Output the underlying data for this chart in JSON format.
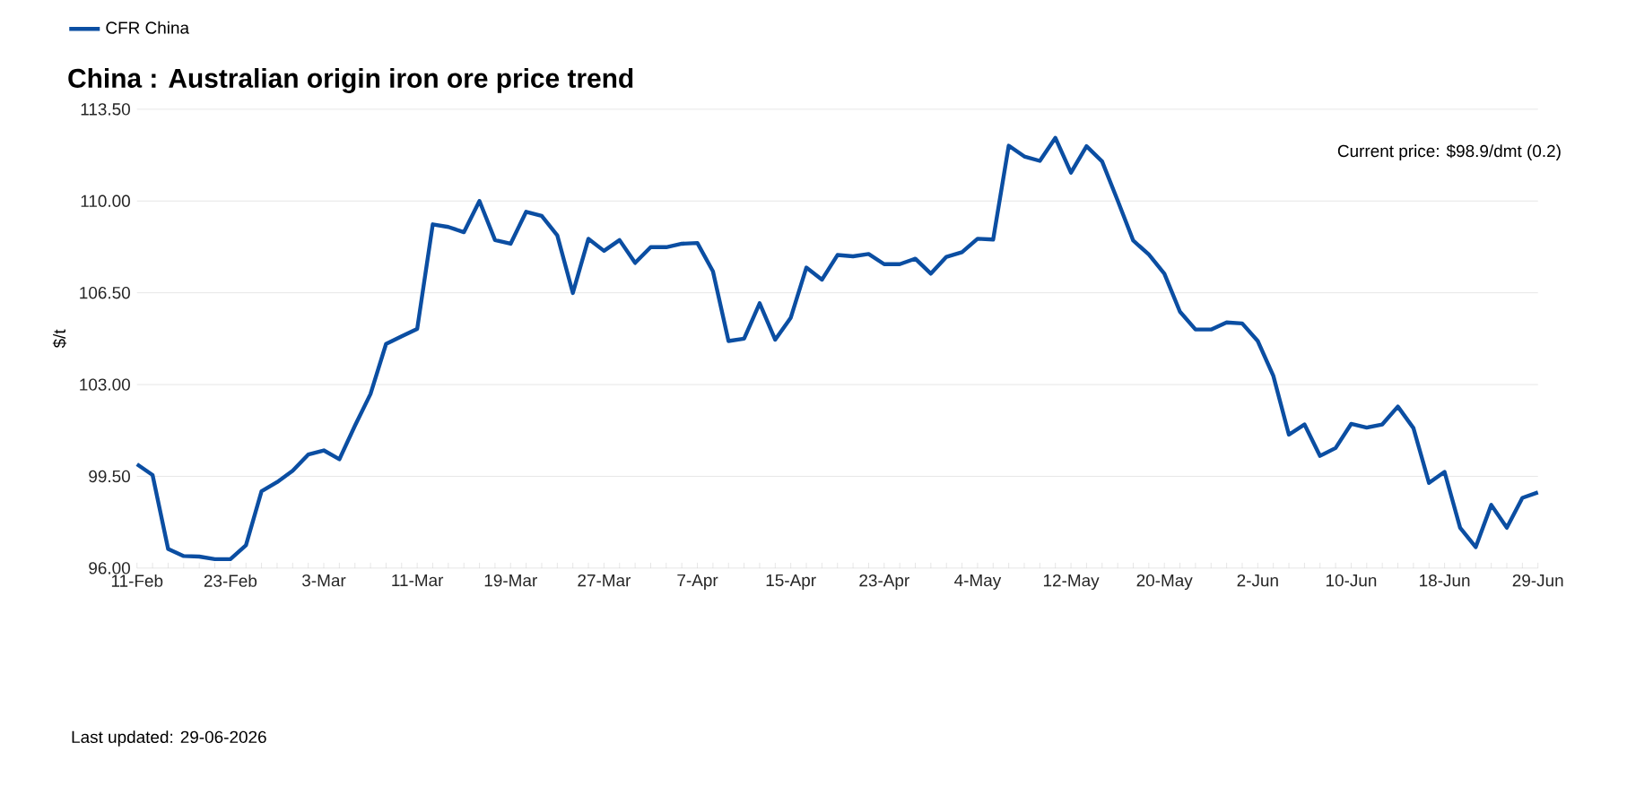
{
  "chart_data": {
    "type": "line",
    "title": "China : Australian origin iron ore price trend",
    "ylabel": "$/t",
    "categories": [
      "11-Feb",
      null,
      null,
      null,
      null,
      null,
      "23-Feb",
      null,
      null,
      null,
      null,
      null,
      "3-Mar",
      null,
      null,
      null,
      null,
      null,
      "11-Mar",
      null,
      null,
      null,
      null,
      null,
      "19-Mar",
      null,
      null,
      null,
      null,
      null,
      "27-Mar",
      null,
      null,
      null,
      null,
      null,
      "7-Apr",
      null,
      null,
      null,
      null,
      null,
      "15-Apr",
      null,
      null,
      null,
      null,
      null,
      "23-Apr",
      null,
      null,
      null,
      null,
      null,
      "4-May",
      null,
      null,
      null,
      null,
      null,
      "12-May",
      null,
      null,
      null,
      null,
      null,
      "20-May",
      null,
      null,
      null,
      null,
      null,
      "2-Jun",
      null,
      null,
      null,
      null,
      null,
      "10-Jun",
      null,
      null,
      null,
      null,
      null,
      "18-Jun",
      null,
      null,
      null,
      null,
      null,
      "29-Jun"
    ],
    "series": [
      {
        "name": "CFR China",
        "color": "#0b4ea2",
        "values": [
          99.96,
          99.55,
          96.73,
          96.46,
          96.44,
          96.34,
          96.34,
          96.87,
          98.93,
          99.28,
          99.71,
          100.33,
          100.49,
          100.15,
          101.43,
          102.64,
          104.55,
          104.84,
          105.12,
          109.11,
          109.01,
          108.81,
          110.0,
          108.51,
          108.37,
          109.59,
          109.43,
          108.69,
          106.49,
          108.56,
          108.1,
          108.51,
          107.64,
          108.24,
          108.24,
          108.37,
          108.4,
          107.32,
          104.66,
          104.75,
          106.1,
          104.71,
          105.55,
          107.46,
          107.0,
          107.94,
          107.89,
          107.98,
          107.59,
          107.59,
          107.8,
          107.23,
          107.87,
          108.05,
          108.56,
          108.53,
          112.11,
          111.7,
          111.53,
          112.41,
          111.08,
          112.09,
          111.51,
          110.02,
          108.49,
          107.96,
          107.23,
          105.78,
          105.1,
          105.1,
          105.37,
          105.33,
          104.66,
          103.33,
          101.09,
          101.48,
          100.28,
          100.58,
          101.5,
          101.36,
          101.48,
          102.16,
          101.34,
          99.25,
          99.67,
          97.54,
          96.8,
          98.41,
          97.54,
          98.68,
          98.89
        ]
      }
    ],
    "ylim": [
      96,
      113.5
    ],
    "yticks": [
      {
        "value": 96,
        "label": "96.00"
      },
      {
        "value": 99.5,
        "label": "99.50"
      },
      {
        "value": 103,
        "label": "103.00"
      },
      {
        "value": 106.5,
        "label": "106.50"
      },
      {
        "value": 110,
        "label": "110.00"
      },
      {
        "value": 113.5,
        "label": "113.50"
      }
    ],
    "grid": "y",
    "legend": "top left",
    "marker": "none",
    "line_style": "solid",
    "annotations": [
      "Current price: $98.9/dmt (0.2)",
      "Last updated: 29-06-2026"
    ]
  }
}
